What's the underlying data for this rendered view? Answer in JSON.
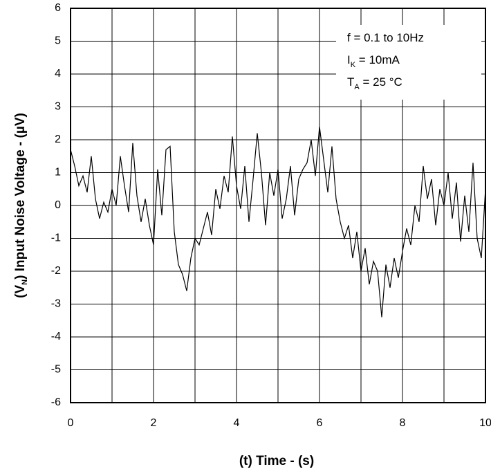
{
  "chart_data": {
    "type": "line",
    "x_label": "(t)  Time - (s)",
    "y_label": {
      "pre": "(V",
      "sub": "N",
      "post": ") Input Noise Voltage - (µV)"
    },
    "annotations": [
      {
        "pre": "f = 0.1 to 10Hz"
      },
      {
        "pre": "I",
        "sub": "K",
        "post": " = 10mA"
      },
      {
        "pre": "T",
        "sub": "A",
        "post": " = 25 °C"
      }
    ],
    "x": [
      0,
      0.1,
      0.2,
      0.3,
      0.4,
      0.5,
      0.6,
      0.7,
      0.8,
      0.9,
      1,
      1.1,
      1.2,
      1.3,
      1.4,
      1.5,
      1.6,
      1.7,
      1.8,
      1.9,
      2,
      2.1,
      2.2,
      2.3,
      2.4,
      2.5,
      2.6,
      2.7,
      2.8,
      2.9,
      3,
      3.1,
      3.2,
      3.3,
      3.4,
      3.5,
      3.6,
      3.7,
      3.8,
      3.9,
      4,
      4.1,
      4.2,
      4.3,
      4.4,
      4.5,
      4.6,
      4.7,
      4.8,
      4.9,
      5,
      5.1,
      5.2,
      5.3,
      5.4,
      5.5,
      5.6,
      5.7,
      5.8,
      5.9,
      6,
      6.1,
      6.2,
      6.3,
      6.4,
      6.5,
      6.6,
      6.7,
      6.8,
      6.9,
      7,
      7.1,
      7.2,
      7.3,
      7.4,
      7.5,
      7.6,
      7.7,
      7.8,
      7.9,
      8,
      8.1,
      8.2,
      8.3,
      8.4,
      8.5,
      8.6,
      8.7,
      8.8,
      8.9,
      9,
      9.1,
      9.2,
      9.3,
      9.4,
      9.5,
      9.6,
      9.7,
      9.8,
      9.9,
      10
    ],
    "series": [
      {
        "color": "#000000",
        "values": [
          1.7,
          1.2,
          0.6,
          0.9,
          0.4,
          1.5,
          0.2,
          -0.4,
          0.1,
          -0.2,
          0.5,
          0.0,
          1.5,
          0.6,
          -0.2,
          1.9,
          0.3,
          -0.5,
          0.2,
          -0.6,
          -1.2,
          1.1,
          -0.3,
          1.7,
          1.8,
          -0.8,
          -1.8,
          -2.1,
          -2.6,
          -1.6,
          -1.0,
          -1.2,
          -0.7,
          -0.2,
          -0.9,
          0.5,
          -0.1,
          0.9,
          0.4,
          2.1,
          0.6,
          -0.1,
          1.2,
          -0.5,
          0.8,
          2.2,
          1.0,
          -0.6,
          1.0,
          0.3,
          1.1,
          -0.4,
          0.2,
          1.2,
          -0.3,
          0.8,
          1.1,
          1.3,
          2.0,
          0.9,
          2.4,
          1.4,
          0.4,
          1.8,
          0.2,
          -0.5,
          -1.0,
          -0.6,
          -1.6,
          -0.8,
          -2.0,
          -1.3,
          -2.4,
          -1.7,
          -2.0,
          -3.4,
          -1.8,
          -2.5,
          -1.6,
          -2.2,
          -1.4,
          -0.7,
          -1.2,
          0.0,
          -0.5,
          1.2,
          0.2,
          0.8,
          -0.6,
          0.5,
          0.0,
          1.0,
          -0.4,
          0.7,
          -1.1,
          0.3,
          -0.8,
          1.3,
          -1.0,
          -1.6,
          0.5
        ]
      }
    ],
    "xlim": [
      0,
      10
    ],
    "xticks": [
      0,
      2,
      4,
      6,
      8,
      10
    ],
    "ylim": [
      -6,
      6
    ],
    "yticks": [
      -6,
      -5,
      -4,
      -3,
      -2,
      -1,
      0,
      1,
      2,
      3,
      4,
      5,
      6
    ],
    "grid": true
  }
}
